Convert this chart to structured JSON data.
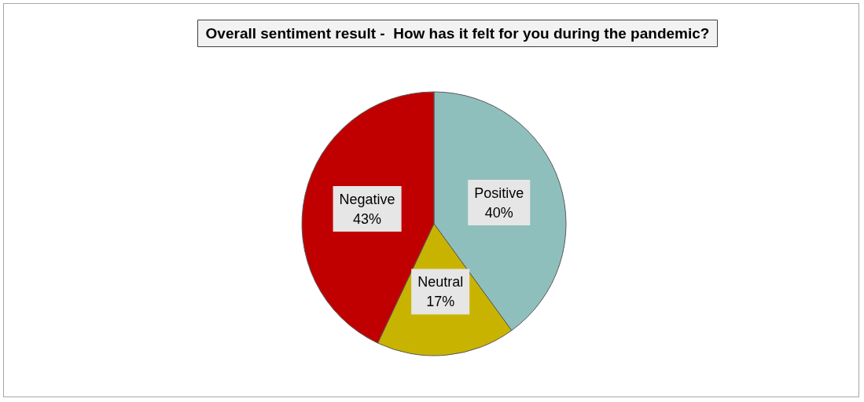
{
  "chart_data": {
    "type": "pie",
    "title": "Overall sentiment result -  How has it felt for you during the pandemic?",
    "categories": [
      "Positive",
      "Neutral",
      "Negative"
    ],
    "values": [
      40,
      17,
      43
    ],
    "colors": [
      "#8fbfbc",
      "#c8b400",
      "#c00000"
    ],
    "value_labels": [
      "40%",
      "17%",
      "43%"
    ],
    "legend": false
  }
}
